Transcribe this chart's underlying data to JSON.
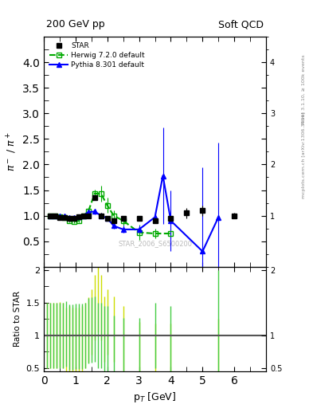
{
  "title_left": "200 GeV pp",
  "title_right": "Soft QCD",
  "ylabel_main": "$\\pi^-$ / $\\pi^+$",
  "ylabel_ratio": "Ratio to STAR",
  "xlabel": "p$_T$ [GeV]",
  "right_label_top": "Rivet 3.1.10, ≥ 100k events",
  "right_label_bottom": "mcplots.cern.ch [arXiv:1306.3436]",
  "watermark": "STAR_2006_S6500200",
  "ylim_main": [
    0.0,
    4.5
  ],
  "ylim_ratio": [
    0.45,
    2.05
  ],
  "xlim": [
    0.0,
    7.0
  ],
  "star_x": [
    0.2,
    0.35,
    0.5,
    0.65,
    0.8,
    0.95,
    1.1,
    1.25,
    1.4,
    1.6,
    1.8,
    2.0,
    2.2,
    2.5,
    3.0,
    3.5,
    4.0,
    4.5,
    5.0,
    6.0
  ],
  "star_y": [
    1.0,
    1.0,
    0.97,
    0.97,
    0.95,
    0.95,
    0.98,
    1.0,
    1.0,
    1.35,
    1.0,
    0.95,
    0.9,
    0.95,
    0.95,
    0.9,
    0.95,
    1.05,
    1.1,
    1.0
  ],
  "star_yerr": [
    0.03,
    0.03,
    0.03,
    0.03,
    0.03,
    0.03,
    0.03,
    0.03,
    0.03,
    0.05,
    0.05,
    0.05,
    0.05,
    0.05,
    0.05,
    0.05,
    0.05,
    0.1,
    0.1,
    0.05
  ],
  "herwig_x": [
    0.2,
    0.35,
    0.5,
    0.65,
    0.8,
    0.95,
    1.1,
    1.25,
    1.4,
    1.6,
    1.8,
    2.0,
    2.2,
    2.5,
    3.0,
    3.5,
    4.0
  ],
  "herwig_y": [
    1.0,
    1.0,
    0.98,
    0.97,
    0.9,
    0.88,
    0.9,
    1.0,
    1.08,
    1.43,
    1.43,
    1.2,
    1.0,
    0.9,
    0.67,
    0.65,
    0.65
  ],
  "herwig_yerr": [
    0.02,
    0.02,
    0.02,
    0.02,
    0.03,
    0.03,
    0.03,
    0.03,
    0.05,
    0.08,
    0.15,
    0.15,
    0.1,
    0.1,
    0.15,
    0.1,
    0.1
  ],
  "pythia_x": [
    0.2,
    0.35,
    0.5,
    0.65,
    0.8,
    0.95,
    1.1,
    1.25,
    1.4,
    1.6,
    1.8,
    2.0,
    2.2,
    2.5,
    3.0,
    3.5,
    3.75,
    4.0,
    5.0,
    5.5
  ],
  "pythia_y": [
    1.0,
    1.0,
    0.99,
    0.99,
    0.97,
    0.97,
    0.98,
    1.0,
    1.07,
    1.08,
    1.0,
    0.95,
    0.8,
    0.73,
    0.73,
    0.97,
    1.78,
    0.9,
    0.3,
    0.97
  ],
  "pythia_yerr": [
    0.01,
    0.01,
    0.01,
    0.01,
    0.02,
    0.02,
    0.02,
    0.02,
    0.03,
    0.05,
    0.05,
    0.05,
    0.05,
    0.07,
    0.07,
    0.1,
    0.95,
    0.6,
    1.65,
    1.45
  ],
  "ratio_herwig_x": [
    0.1,
    0.2,
    0.3,
    0.4,
    0.5,
    0.6,
    0.7,
    0.8,
    0.9,
    1.0,
    1.1,
    1.2,
    1.3,
    1.4,
    1.5,
    1.6,
    1.7,
    1.8,
    1.9,
    2.0,
    2.2,
    2.5,
    3.0,
    3.5,
    4.0,
    5.5
  ],
  "ratio_herwig_y": [
    1.0,
    1.0,
    1.0,
    1.0,
    1.01,
    1.0,
    0.93,
    0.95,
    0.93,
    0.92,
    0.92,
    0.95,
    1.0,
    1.08,
    1.2,
    1.43,
    1.55,
    1.43,
    1.1,
    1.2,
    1.1,
    0.95,
    0.7,
    0.68,
    0.68,
    0.75
  ],
  "ratio_herwig_yerr_up": [
    0.5,
    0.5,
    0.5,
    0.5,
    0.5,
    0.5,
    0.5,
    0.5,
    0.5,
    0.5,
    0.5,
    0.5,
    0.5,
    0.5,
    0.5,
    0.5,
    0.5,
    0.5,
    0.5,
    0.5,
    0.5,
    0.5,
    0.5,
    0.5,
    0.5,
    0.5
  ],
  "ratio_herwig_yerr_down": [
    0.5,
    0.5,
    0.5,
    0.5,
    0.5,
    0.5,
    0.5,
    0.5,
    0.5,
    0.5,
    0.5,
    0.5,
    0.5,
    0.5,
    0.5,
    0.5,
    0.5,
    0.5,
    0.5,
    0.5,
    0.5,
    0.5,
    0.5,
    0.5,
    0.5,
    0.5
  ],
  "ratio_pythia_x": [
    0.1,
    0.2,
    0.3,
    0.4,
    0.5,
    0.6,
    0.7,
    0.8,
    0.9,
    1.0,
    1.1,
    1.2,
    1.3,
    1.4,
    1.5,
    1.6,
    1.7,
    1.8,
    1.9,
    2.0,
    2.2,
    2.5,
    3.0,
    3.5,
    4.0,
    5.5
  ],
  "ratio_pythia_y": [
    1.0,
    1.0,
    1.0,
    1.0,
    1.0,
    1.0,
    1.02,
    0.97,
    0.97,
    0.98,
    0.98,
    0.99,
    1.0,
    1.07,
    1.08,
    1.1,
    1.0,
    1.0,
    0.95,
    0.95,
    0.8,
    0.77,
    0.77,
    1.0,
    0.95,
    0.32
  ],
  "ratio_pythia_yerr_up": [
    0.5,
    0.5,
    0.5,
    0.5,
    0.5,
    0.5,
    0.5,
    0.5,
    0.5,
    0.5,
    0.5,
    0.5,
    0.5,
    0.5,
    0.5,
    0.5,
    0.5,
    0.5,
    0.5,
    0.5,
    0.5,
    0.5,
    0.5,
    0.5,
    0.5,
    1.68
  ],
  "ratio_pythia_yerr_down": [
    0.5,
    0.5,
    0.5,
    0.5,
    0.5,
    0.5,
    0.5,
    0.5,
    0.5,
    0.5,
    0.5,
    0.5,
    0.5,
    0.5,
    0.5,
    0.5,
    0.5,
    0.5,
    0.5,
    0.5,
    0.5,
    0.5,
    0.5,
    0.5,
    0.5,
    0.5
  ],
  "color_star": "#000000",
  "color_herwig": "#00aa00",
  "color_pythia": "#0000ff",
  "color_ratio_herwig": "#ccdd00",
  "color_ratio_pythia": "#44cc44"
}
